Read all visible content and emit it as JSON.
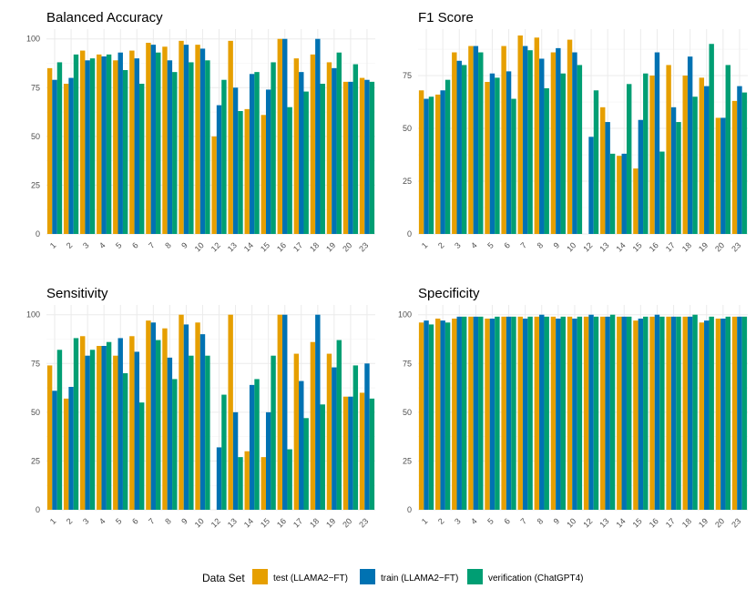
{
  "chart_data": {
    "type": "bar",
    "legend": {
      "title": "Data Set",
      "placement": "bottom",
      "entries": [
        {
          "name": "test (LLAMA2−FT)",
          "color": "#E69F00"
        },
        {
          "name": "train (LLAMA2−FT)",
          "color": "#0072B2"
        },
        {
          "name": "verification (ChatGPT4)",
          "color": "#009E73"
        }
      ]
    },
    "panels": [
      {
        "title": "Balanced Accuracy",
        "categories": [
          "1",
          "2",
          "3",
          "4",
          "5",
          "6",
          "7",
          "8",
          "9",
          "10",
          "12",
          "13",
          "14",
          "15",
          "16",
          "17",
          "18",
          "19",
          "20",
          "23"
        ],
        "yticks": [
          0,
          25,
          50,
          75,
          100
        ],
        "ylim": [
          0,
          105
        ],
        "series": [
          {
            "name": "test (LLAMA2−FT)",
            "values": [
              85,
              77,
              94,
              92,
              89,
              94,
              98,
              96,
              99,
              97,
              50,
              99,
              64,
              61,
              100,
              90,
              92,
              88,
              78,
              80
            ]
          },
          {
            "name": "train (LLAMA2−FT)",
            "values": [
              79,
              80,
              89,
              91,
              93,
              90,
              97,
              89,
              97,
              95,
              66,
              75,
              82,
              74,
              100,
              83,
              100,
              85,
              78,
              79
            ]
          },
          {
            "name": "verification (ChatGPT4)",
            "values": [
              88,
              92,
              90,
              92,
              84,
              77,
              93,
              83,
              88,
              89,
              79,
              63,
              83,
              88,
              65,
              73,
              77,
              93,
              87,
              78
            ]
          }
        ]
      },
      {
        "title": "F1 Score",
        "categories": [
          "1",
          "2",
          "3",
          "4",
          "5",
          "6",
          "7",
          "8",
          "9",
          "10",
          "12",
          "13",
          "14",
          "15",
          "16",
          "17",
          "18",
          "19",
          "20",
          "23"
        ],
        "yticks": [
          0,
          25,
          50,
          75
        ],
        "ylim": [
          0,
          97
        ],
        "series": [
          {
            "name": "test (LLAMA2−FT)",
            "values": [
              68,
              66,
              86,
              89,
              72,
              89,
              94,
              93,
              86,
              92,
              0,
              60,
              37,
              31,
              75,
              80,
              75,
              74,
              55,
              63
            ]
          },
          {
            "name": "train (LLAMA2−FT)",
            "values": [
              64,
              68,
              82,
              89,
              76,
              77,
              89,
              83,
              88,
              86,
              46,
              53,
              38,
              54,
              86,
              60,
              84,
              70,
              55,
              70
            ]
          },
          {
            "name": "verification (ChatGPT4)",
            "values": [
              65,
              73,
              80,
              86,
              74,
              64,
              87,
              69,
              76,
              80,
              68,
              38,
              71,
              76,
              39,
              53,
              65,
              90,
              80,
              67
            ]
          }
        ]
      },
      {
        "title": "Sensitivity",
        "categories": [
          "1",
          "2",
          "3",
          "4",
          "5",
          "6",
          "7",
          "8",
          "9",
          "10",
          "12",
          "13",
          "14",
          "15",
          "16",
          "17",
          "18",
          "19",
          "20",
          "23"
        ],
        "yticks": [
          0,
          25,
          50,
          75,
          100
        ],
        "ylim": [
          0,
          105
        ],
        "series": [
          {
            "name": "test (LLAMA2−FT)",
            "values": [
              74,
              57,
              89,
              84,
              79,
              89,
              97,
              93,
              100,
              96,
              0,
              100,
              30,
              27,
              100,
              80,
              86,
              80,
              58,
              60
            ]
          },
          {
            "name": "train (LLAMA2−FT)",
            "values": [
              61,
              63,
              79,
              84,
              88,
              81,
              96,
              78,
              95,
              90,
              32,
              50,
              64,
              50,
              100,
              66,
              100,
              73,
              58,
              75
            ]
          },
          {
            "name": "verification (ChatGPT4)",
            "values": [
              82,
              88,
              82,
              86,
              70,
              55,
              87,
              67,
              79,
              79,
              59,
              27,
              67,
              79,
              31,
              47,
              54,
              87,
              74,
              57
            ]
          }
        ]
      },
      {
        "title": "Specificity",
        "categories": [
          "1",
          "2",
          "3",
          "4",
          "5",
          "6",
          "7",
          "8",
          "9",
          "10",
          "12",
          "13",
          "14",
          "15",
          "16",
          "17",
          "18",
          "19",
          "20",
          "23"
        ],
        "yticks": [
          0,
          25,
          50,
          75,
          100
        ],
        "ylim": [
          0,
          105
        ],
        "series": [
          {
            "name": "test (LLAMA2−FT)",
            "values": [
              96,
              98,
              98,
              99,
              98,
              99,
              99,
              99,
              99,
              99,
              99,
              99,
              99,
              97,
              99,
              99,
              99,
              96,
              98,
              99
            ]
          },
          {
            "name": "train (LLAMA2−FT)",
            "values": [
              97,
              97,
              99,
              99,
              98,
              99,
              98,
              100,
              98,
              98,
              100,
              99,
              99,
              98,
              100,
              99,
              99,
              97,
              98,
              99
            ]
          },
          {
            "name": "verification (ChatGPT4)",
            "values": [
              95,
              96,
              99,
              99,
              99,
              99,
              99,
              99,
              99,
              99,
              99,
              100,
              99,
              99,
              99,
              99,
              100,
              99,
              99,
              99
            ]
          }
        ]
      }
    ]
  }
}
